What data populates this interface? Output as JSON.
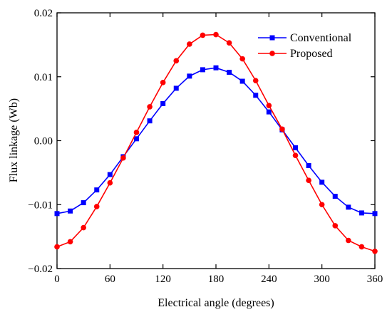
{
  "chart_data": {
    "type": "line",
    "title": "",
    "xlabel": "Electrical angle (degrees)",
    "ylabel": "Flux linkage (Wb)",
    "xlim": [
      0,
      360
    ],
    "ylim": [
      -0.02,
      0.02
    ],
    "xticks": [
      "0",
      "60",
      "120",
      "180",
      "240",
      "300",
      "360"
    ],
    "yticks": [
      "−0.02",
      "−0.01",
      "0.00",
      "0.01",
      "0.02"
    ],
    "grid": false,
    "legend_position": "top-right",
    "x": [
      0,
      15,
      30,
      45,
      60,
      75,
      90,
      105,
      120,
      135,
      150,
      165,
      180,
      195,
      210,
      225,
      240,
      255,
      270,
      285,
      300,
      315,
      330,
      345,
      360
    ],
    "series": [
      {
        "name": "Conventional",
        "color": "#0000ff",
        "marker": "square",
        "values": [
          -0.0114,
          -0.011,
          -0.0097,
          -0.0077,
          -0.0053,
          -0.0025,
          0.0003,
          0.0031,
          0.0058,
          0.0082,
          0.0101,
          0.0111,
          0.0114,
          0.0107,
          0.0093,
          0.0071,
          0.0045,
          0.0017,
          -0.0011,
          -0.0039,
          -0.0065,
          -0.0087,
          -0.0104,
          -0.0113,
          -0.0114
        ]
      },
      {
        "name": "Proposed",
        "color": "#ff0000",
        "marker": "circle",
        "values": [
          -0.0166,
          -0.0158,
          -0.0136,
          -0.0103,
          -0.0066,
          -0.0027,
          0.0013,
          0.0053,
          0.0091,
          0.0125,
          0.0151,
          0.0165,
          0.0166,
          0.0153,
          0.0128,
          0.0094,
          0.0055,
          0.0018,
          -0.0023,
          -0.0062,
          -0.01,
          -0.0133,
          -0.0156,
          -0.0166,
          -0.0173
        ]
      }
    ]
  }
}
